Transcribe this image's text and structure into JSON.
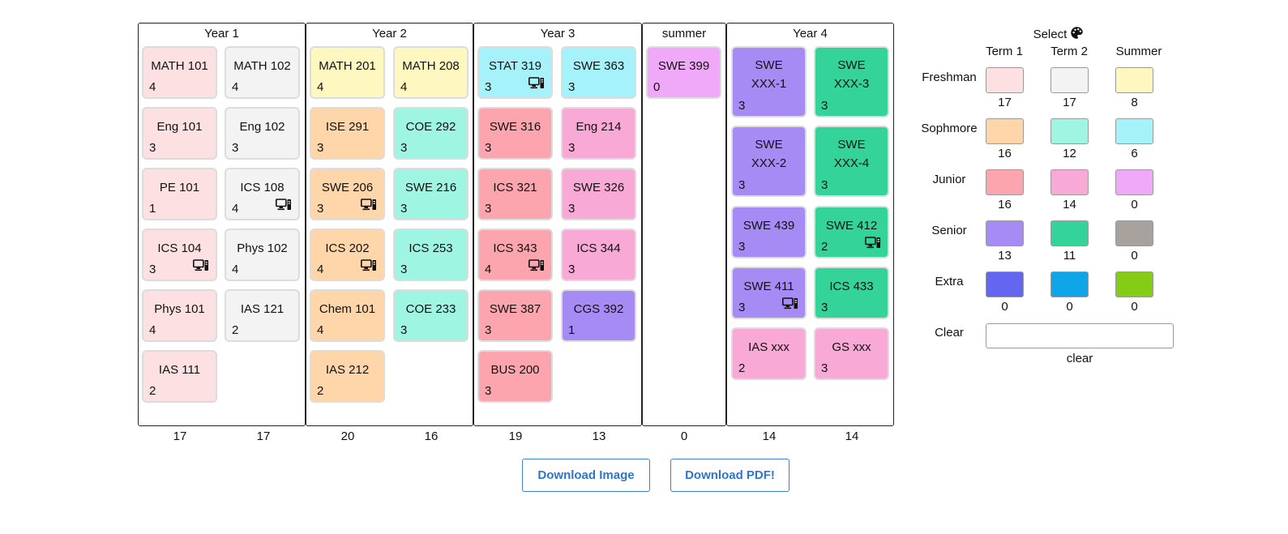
{
  "colors": {
    "f1": "#fde1e2",
    "f2": "#f3f3f3",
    "fs": "#fef8c0",
    "s1": "#fed6aa",
    "s2": "#9ef5e2",
    "ss": "#a5f2fb",
    "j1": "#fda5ae",
    "j2": "#f8a9d5",
    "js": "#f0a8f8",
    "n1": "#a68bf5",
    "n2": "#34d399",
    "ns": "#a8a29e",
    "e1": "#6366f1",
    "e2": "#0ea5e9",
    "es": "#84cc16"
  },
  "years": [
    {
      "title": "Year 1",
      "terms": [
        {
          "total": "17",
          "courses": [
            {
              "name": "MATH 101",
              "credit": "4",
              "color": "f1"
            },
            {
              "name": "Eng 101",
              "credit": "3",
              "color": "f1"
            },
            {
              "name": "PE 101",
              "credit": "1",
              "color": "f1"
            },
            {
              "name": "ICS 104",
              "credit": "3",
              "color": "f1",
              "lab": true
            },
            {
              "name": "Phys 101",
              "credit": "4",
              "color": "f1"
            },
            {
              "name": "IAS 111",
              "credit": "2",
              "color": "f1"
            }
          ]
        },
        {
          "total": "17",
          "courses": [
            {
              "name": "MATH 102",
              "credit": "4",
              "color": "f2"
            },
            {
              "name": "Eng 102",
              "credit": "3",
              "color": "f2"
            },
            {
              "name": "ICS 108",
              "credit": "4",
              "color": "f2",
              "lab": true
            },
            {
              "name": "Phys 102",
              "credit": "4",
              "color": "f2"
            },
            {
              "name": "IAS 121",
              "credit": "2",
              "color": "f2"
            }
          ]
        }
      ]
    },
    {
      "title": "Year 2",
      "terms": [
        {
          "total": "20",
          "courses": [
            {
              "name": "MATH 201",
              "credit": "4",
              "color": "fs"
            },
            {
              "name": "ISE 291",
              "credit": "3",
              "color": "s1"
            },
            {
              "name": "SWE 206",
              "credit": "3",
              "color": "s1",
              "lab": true
            },
            {
              "name": "ICS 202",
              "credit": "4",
              "color": "s1",
              "lab": true
            },
            {
              "name": "Chem 101",
              "credit": "4",
              "color": "s1"
            },
            {
              "name": "IAS 212",
              "credit": "2",
              "color": "s1"
            }
          ]
        },
        {
          "total": "16",
          "courses": [
            {
              "name": "MATH 208",
              "credit": "4",
              "color": "fs"
            },
            {
              "name": "COE 292",
              "credit": "3",
              "color": "s2"
            },
            {
              "name": "SWE 216",
              "credit": "3",
              "color": "s2"
            },
            {
              "name": "ICS 253",
              "credit": "3",
              "color": "s2"
            },
            {
              "name": "COE 233",
              "credit": "3",
              "color": "s2"
            }
          ]
        }
      ]
    },
    {
      "title": "Year 3",
      "terms": [
        {
          "total": "19",
          "courses": [
            {
              "name": "STAT 319",
              "credit": "3",
              "color": "ss",
              "lab": true
            },
            {
              "name": "SWE 316",
              "credit": "3",
              "color": "j1"
            },
            {
              "name": "ICS 321",
              "credit": "3",
              "color": "j1"
            },
            {
              "name": "ICS 343",
              "credit": "4",
              "color": "j1",
              "lab": true
            },
            {
              "name": "SWE 387",
              "credit": "3",
              "color": "j1"
            },
            {
              "name": "BUS 200",
              "credit": "3",
              "color": "j1"
            }
          ]
        },
        {
          "total": "13",
          "courses": [
            {
              "name": "SWE 363",
              "credit": "3",
              "color": "ss"
            },
            {
              "name": "Eng 214",
              "credit": "3",
              "color": "j2"
            },
            {
              "name": "SWE 326",
              "credit": "3",
              "color": "j2"
            },
            {
              "name": "ICS 344",
              "credit": "3",
              "color": "j2"
            },
            {
              "name": "CGS 392",
              "credit": "1",
              "color": "n1"
            }
          ]
        }
      ]
    },
    {
      "title": "summer",
      "terms": [
        {
          "total": "0",
          "courses": [
            {
              "name": "SWE 399",
              "credit": "0",
              "color": "js"
            }
          ]
        }
      ]
    },
    {
      "title": "Year 4",
      "terms": [
        {
          "total": "14",
          "courses": [
            {
              "name": "SWE XXX-1",
              "credit": "3",
              "color": "n1",
              "tall": true
            },
            {
              "name": "SWE XXX-2",
              "credit": "3",
              "color": "n1",
              "tall": true
            },
            {
              "name": "SWE 439",
              "credit": "3",
              "color": "n1"
            },
            {
              "name": "SWE 411",
              "credit": "3",
              "color": "n1",
              "lab": true
            },
            {
              "name": "IAS xxx",
              "credit": "2",
              "color": "j2"
            }
          ]
        },
        {
          "total": "14",
          "courses": [
            {
              "name": "SWE XXX-3",
              "credit": "3",
              "color": "n2",
              "tall": true
            },
            {
              "name": "SWE XXX-4",
              "credit": "3",
              "color": "n2",
              "tall": true
            },
            {
              "name": "SWE 412",
              "credit": "2",
              "color": "n2",
              "lab": true
            },
            {
              "name": "ICS 433",
              "credit": "3",
              "color": "n2"
            },
            {
              "name": "GS xxx",
              "credit": "3",
              "color": "j2"
            }
          ]
        }
      ]
    }
  ],
  "buttons": {
    "download_image": "Download Image",
    "download_pdf": "Download PDF!"
  },
  "picker": {
    "title": "Select",
    "columns": [
      "Term 1",
      "Term 2",
      "Summer"
    ],
    "rows": [
      {
        "label": "Freshman",
        "swatches": [
          "f1",
          "f2",
          "fs"
        ],
        "counts": [
          "17",
          "17",
          "8"
        ]
      },
      {
        "label": "Sophmore",
        "swatches": [
          "s1",
          "s2",
          "ss"
        ],
        "counts": [
          "16",
          "12",
          "6"
        ]
      },
      {
        "label": "Junior",
        "swatches": [
          "j1",
          "j2",
          "js"
        ],
        "counts": [
          "16",
          "14",
          "0"
        ]
      },
      {
        "label": "Senior",
        "swatches": [
          "n1",
          "n2",
          "ns"
        ],
        "counts": [
          "13",
          "11",
          "0"
        ]
      },
      {
        "label": "Extra",
        "swatches": [
          "e1",
          "e2",
          "es"
        ],
        "counts": [
          "0",
          "0",
          "0"
        ]
      }
    ],
    "clear_label": "Clear",
    "clear_caption": "clear"
  }
}
